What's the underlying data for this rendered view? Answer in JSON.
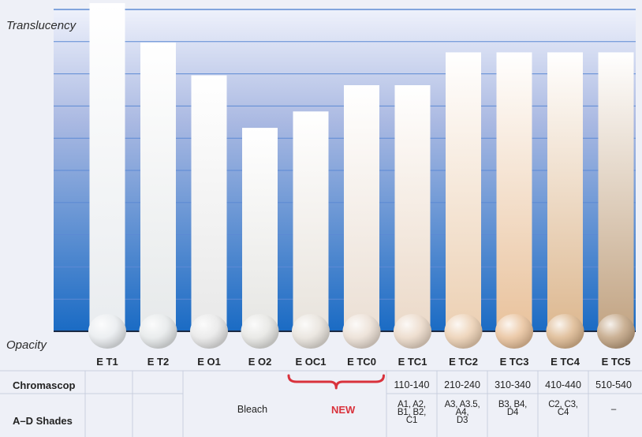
{
  "chart_data": {
    "type": "bar",
    "ylabel": "Translucency",
    "xlabel": "Opacity",
    "categories": [
      "E T1",
      "E T2",
      "E O1",
      "E O2",
      "E OC1",
      "E TC0",
      "E TC1",
      "E TC2",
      "E TC3",
      "E TC4",
      "E TC5"
    ],
    "values": [
      100,
      88,
      78,
      62,
      67,
      75,
      75,
      85,
      85,
      85,
      85
    ],
    "ylim": [
      0,
      100
    ],
    "sample_colors": [
      "#e9ecef",
      "#e6e9ea",
      "#e8e8e8",
      "#e6e6e3",
      "#e8e3dc",
      "#ebdfd4",
      "#ebd9c8",
      "#ecd0b3",
      "#e9c29c",
      "#ddb890",
      "#c2a483"
    ],
    "bar_tops": [
      "#ffffff",
      "#ffffff",
      "#ffffff",
      "#ffffff",
      "#ffffff",
      "#ffffff",
      "#ffffff",
      "#ffffff",
      "#ffffff",
      "#ffffff",
      "#ffffff"
    ],
    "bar_bottoms": [
      "#e9ecef",
      "#e6e9ea",
      "#e8e8e8",
      "#e6e6e3",
      "#e8e3dc",
      "#ebdfd4",
      "#ebd9c8",
      "#ecd0b3",
      "#e9c29c",
      "#ddb890",
      "#c2a483"
    ]
  },
  "table": {
    "row1_header": "Chromascop",
    "row2_header": "A–D Shades",
    "bleach": "Bleach",
    "new": "NEW",
    "chromascop": [
      "110-140",
      "210-240",
      "310-340",
      "410-440",
      "510-540"
    ],
    "shades": [
      [
        "A1, A2,",
        "B1, B2,",
        "C1"
      ],
      [
        "A3, A3.5,",
        "A4,",
        "D3"
      ],
      [
        "B3, B4,",
        "D4"
      ],
      [
        "C2, C3,",
        "C4"
      ],
      [
        "–"
      ]
    ]
  },
  "colors": {
    "grad_top": "#eef1fb",
    "grad_bottom": "#1a6bc4",
    "grid": "#5d8ad4",
    "new_red": "#d9323c",
    "table_line": "#c9cfdf"
  }
}
